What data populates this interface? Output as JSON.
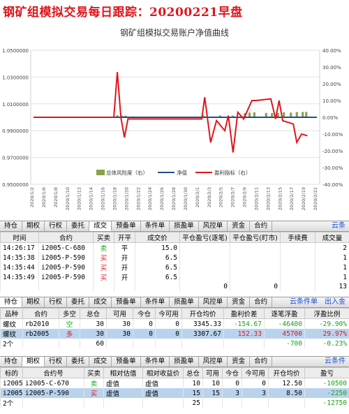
{
  "header": {
    "title": "钢矿组模拟交易每日跟踪：20200221早盘"
  },
  "chart_data": {
    "type": "line",
    "title": "钢矿组模拟交易账户净值曲线",
    "x": [
      "2020/1/2",
      "2020/1/6",
      "2020/1/8",
      "2020/1/10",
      "2020/1/12",
      "2020/1/14",
      "2020/1/16",
      "2020/1/18",
      "2020/1/20",
      "2020/1/22",
      "2020/1/24",
      "2020/1/26",
      "2020/1/28",
      "2020/1/30",
      "2020/2/1",
      "2020/2/3",
      "2020/2/5",
      "2020/2/7",
      "2020/2/9",
      "2020/2/11",
      "2020/2/13",
      "2020/2/15",
      "2020/2/17",
      "2020/2/19",
      "2020/2/21"
    ],
    "y_left": {
      "min": 0.95,
      "max": 1.05,
      "ticks": [
        "0.9500000",
        "0.9700000",
        "0.9900000",
        "1.0100000",
        "1.0300000",
        "1.0500000"
      ]
    },
    "y_right": {
      "min": -40,
      "max": 40,
      "ticks": [
        "-40.00%",
        "-30.00%",
        "-20.00%",
        "-10.00%",
        "0.00%",
        "10.00%",
        "20.00%",
        "30.00%",
        "40.00%"
      ]
    },
    "legend": [
      "总体风险度（右）",
      "净值",
      "盈利指标（右）"
    ],
    "series": [
      {
        "name": "净值",
        "color": "#1f4e8c",
        "values": [
          1.0,
          1.0,
          1.0,
          1.0,
          1.0,
          1.0,
          1.0,
          1.0,
          1.0,
          1.0,
          1.0,
          1.0,
          1.0,
          1.0,
          1.0,
          1.0,
          1.0,
          1.0,
          1.0,
          1.0,
          1.0,
          1.0,
          1.0,
          1.0,
          1.0
        ]
      },
      {
        "name": "盈利指标（右）",
        "color": "#e0151b",
        "points": [
          [
            0,
            0
          ],
          [
            13.6,
            0
          ],
          [
            14.2,
            27
          ],
          [
            14.8,
            0
          ],
          [
            15.4,
            -12
          ],
          [
            16.0,
            -1
          ],
          [
            27.0,
            -1
          ],
          [
            28.0,
            -1
          ],
          [
            28.5,
            -1
          ],
          [
            29.0,
            12
          ],
          [
            30.0,
            -15
          ],
          [
            31.0,
            -2
          ],
          [
            32.4,
            -8
          ],
          [
            33.0,
            1
          ],
          [
            33.8,
            -21
          ],
          [
            34.6,
            3
          ],
          [
            35.6,
            -1
          ],
          [
            37.0,
            10
          ],
          [
            37.7,
            10
          ],
          [
            40.2,
            11
          ],
          [
            41.0,
            -1
          ],
          [
            41.6,
            10
          ],
          [
            42.2,
            -2
          ],
          [
            44.0,
            -4
          ],
          [
            44.6,
            -15
          ],
          [
            45.4,
            -10
          ],
          [
            46.4,
            -11
          ]
        ]
      },
      {
        "name": "总体风险度（右）",
        "color": "#8ba24b",
        "points": [
          [
            14.2,
            1.2
          ],
          [
            15.0,
            1.0
          ],
          [
            15.6,
            1.0
          ],
          [
            28.8,
            1.0
          ],
          [
            31.6,
            1.1
          ],
          [
            33.8,
            1.0
          ],
          [
            35.8,
            2.5
          ],
          [
            36.6,
            2.8
          ],
          [
            37.4,
            3.0
          ],
          [
            39.4,
            2.6
          ],
          [
            40.4,
            2.5
          ],
          [
            41.4,
            2.6
          ],
          [
            42.4,
            3.0
          ],
          [
            43.6,
            2.8
          ],
          [
            44.6,
            3.1
          ],
          [
            45.6,
            3.2
          ],
          [
            46.2,
            3.2
          ]
        ]
      }
    ]
  },
  "trade_tabs": [
    "持仓",
    "期权",
    "行权",
    "委托",
    "成交",
    "预备单",
    "条件单",
    "损盈单",
    "风控单",
    "资金",
    "合约"
  ],
  "trade_tabs_active": 4,
  "trade_tabs_right": "云条",
  "trades": {
    "columns": [
      "时间",
      "合约",
      "买卖",
      "开平",
      "成交价",
      "平仓盈亏(逐笔)",
      "平仓盈亏(盯市)",
      "手续费",
      "成交量"
    ],
    "rows": [
      [
        "14:26:17",
        "i2005-C-680",
        "卖",
        "平",
        "15.0",
        "",
        "",
        "",
        "2"
      ],
      [
        "14:35:38",
        "i2005-P-590",
        "买",
        "开",
        "6.5",
        "",
        "",
        "",
        "1"
      ],
      [
        "14:35:44",
        "i2005-P-590",
        "买",
        "开",
        "6.5",
        "",
        "",
        "",
        "1"
      ],
      [
        "14:35:49",
        "i2005-P-590",
        "买",
        "开",
        "6.5",
        "",
        "",
        "",
        "1"
      ]
    ],
    "total": [
      "",
      "",
      "",
      "",
      "",
      "0",
      "0",
      "",
      "13"
    ]
  },
  "pos_tabs": [
    "持仓",
    "期权",
    "行权",
    "委托",
    "成交",
    "预备单",
    "条件单",
    "损盈单",
    "风控单",
    "资金",
    "合约"
  ],
  "pos_tabs_active": 0,
  "pos_tabs_right": [
    "云条件单",
    "出入金"
  ],
  "positions": {
    "columns": [
      "品种",
      "合约",
      "多空",
      "总仓",
      "可用",
      "今仓",
      "今可用",
      "开仓均价",
      "盈利价差",
      "逐笔浮盈",
      "浮盈比例"
    ],
    "rows": [
      [
        "螺纹",
        "rb2010",
        "空",
        "30",
        "30",
        "0",
        "0",
        "3345.33",
        "-154.67",
        "-46400",
        "-29.90%"
      ],
      [
        "螺纹",
        "rb2005",
        "多",
        "30",
        "30",
        "0",
        "0",
        "3307.67",
        "152.33",
        "45700",
        "29.97%"
      ]
    ],
    "total": [
      "2个",
      "",
      "",
      "60",
      "",
      "",
      "",
      "",
      "",
      "-700",
      "-0.23%"
    ]
  },
  "opt_tabs": [
    "持仓",
    "期权",
    "行权",
    "委托",
    "成交",
    "预备单",
    "条件单",
    "损盈单",
    "风控单",
    "资金",
    "合约"
  ],
  "opt_tabs_active": 1,
  "opt_tabs_right": "云条件",
  "options": {
    "columns": [
      "标的",
      "合约号",
      "买卖",
      "相对估值",
      "相对收益价",
      "总仓",
      "可用",
      "今仓",
      "今可用",
      "开仓均价",
      "盈亏"
    ],
    "rows": [
      [
        "i2005",
        "i2005-C-670",
        "卖",
        "虚值",
        "虚值",
        "10",
        "10",
        "0",
        "0",
        "12.50",
        "-10500"
      ],
      [
        "i2005",
        "i2005-P-590",
        "买",
        "虚值",
        "虚值",
        "15",
        "15",
        "3",
        "3",
        "8.50",
        "-2250"
      ]
    ],
    "total": [
      "2个",
      "",
      "",
      "",
      "",
      "25",
      "",
      "",
      "",
      "",
      "-12750"
    ]
  },
  "colors": {
    "red": "#e0151b",
    "green": "#17a317",
    "blue": "#1a4fd6",
    "selected": "#b9d3ee"
  }
}
